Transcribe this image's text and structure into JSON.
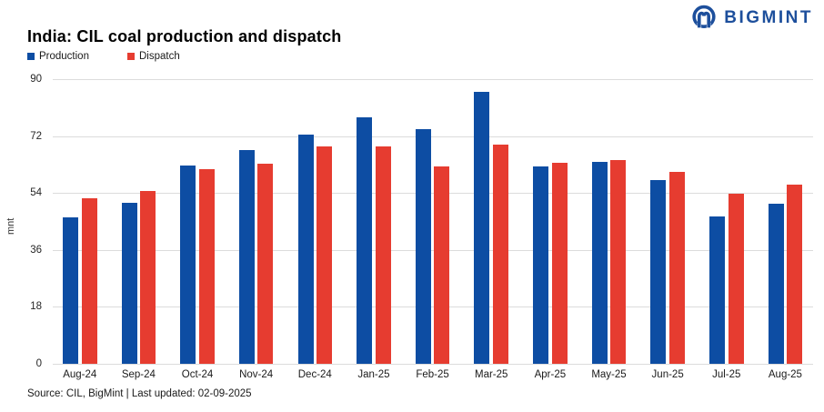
{
  "header": {
    "title": "India: CIL coal production and dispatch",
    "logo_text": "BIGMINT",
    "logo_color": "#1d4f9c"
  },
  "chart_data": {
    "type": "bar",
    "title": "India: CIL coal production and dispatch",
    "categories": [
      "Aug-24",
      "Sep-24",
      "Oct-24",
      "Nov-24",
      "Dec-24",
      "Jan-25",
      "Feb-25",
      "Mar-25",
      "Apr-25",
      "May-25",
      "Jun-25",
      "Jul-25",
      "Aug-25"
    ],
    "series": [
      {
        "name": "Production",
        "color": "#0d4da3",
        "values": [
          46.3,
          51.0,
          62.8,
          67.5,
          72.4,
          78.0,
          74.3,
          86.0,
          62.3,
          63.7,
          58.0,
          46.5,
          50.5
        ]
      },
      {
        "name": "Dispatch",
        "color": "#e63c30",
        "values": [
          52.2,
          54.5,
          61.6,
          63.3,
          68.8,
          68.8,
          62.3,
          69.3,
          63.6,
          64.3,
          60.6,
          53.9,
          56.7
        ]
      }
    ],
    "xlabel": "",
    "ylabel": "mnt",
    "ylim": [
      0,
      90
    ],
    "yticks": [
      0,
      18,
      36,
      54,
      72,
      90
    ],
    "grid": true,
    "legend_position": "top-left"
  },
  "footer": {
    "source": "Source: CIL, BigMint | Last updated: 02-09-2025"
  }
}
